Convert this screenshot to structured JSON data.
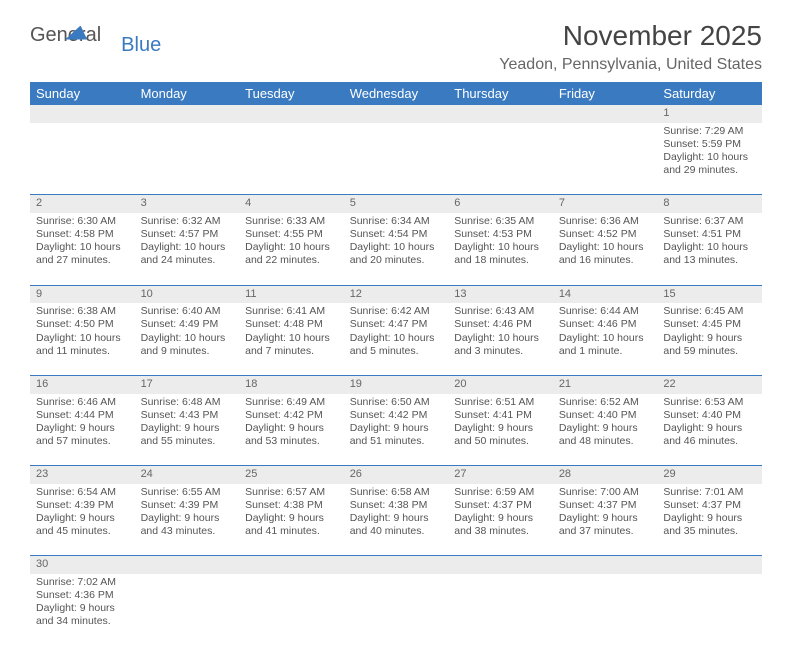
{
  "logo": {
    "part1": "General",
    "part2": "Blue"
  },
  "title": "November 2025",
  "location": "Yeadon, Pennsylvania, United States",
  "colors": {
    "header_bg": "#3a7ac0",
    "header_fg": "#ffffff",
    "daynum_bg": "#ececec",
    "text": "#555555",
    "rule": "#3a7ac0",
    "page_bg": "#ffffff"
  },
  "typography": {
    "title_fontsize": 28,
    "location_fontsize": 16,
    "header_fontsize": 13,
    "daynum_fontsize": 11,
    "body_fontsize": 10.5
  },
  "weekdays": [
    "Sunday",
    "Monday",
    "Tuesday",
    "Wednesday",
    "Thursday",
    "Friday",
    "Saturday"
  ],
  "weeks": [
    [
      null,
      null,
      null,
      null,
      null,
      null,
      {
        "n": "1",
        "sr": "Sunrise: 7:29 AM",
        "ss": "Sunset: 5:59 PM",
        "dl": "Daylight: 10 hours and 29 minutes."
      }
    ],
    [
      {
        "n": "2",
        "sr": "Sunrise: 6:30 AM",
        "ss": "Sunset: 4:58 PM",
        "dl": "Daylight: 10 hours and 27 minutes."
      },
      {
        "n": "3",
        "sr": "Sunrise: 6:32 AM",
        "ss": "Sunset: 4:57 PM",
        "dl": "Daylight: 10 hours and 24 minutes."
      },
      {
        "n": "4",
        "sr": "Sunrise: 6:33 AM",
        "ss": "Sunset: 4:55 PM",
        "dl": "Daylight: 10 hours and 22 minutes."
      },
      {
        "n": "5",
        "sr": "Sunrise: 6:34 AM",
        "ss": "Sunset: 4:54 PM",
        "dl": "Daylight: 10 hours and 20 minutes."
      },
      {
        "n": "6",
        "sr": "Sunrise: 6:35 AM",
        "ss": "Sunset: 4:53 PM",
        "dl": "Daylight: 10 hours and 18 minutes."
      },
      {
        "n": "7",
        "sr": "Sunrise: 6:36 AM",
        "ss": "Sunset: 4:52 PM",
        "dl": "Daylight: 10 hours and 16 minutes."
      },
      {
        "n": "8",
        "sr": "Sunrise: 6:37 AM",
        "ss": "Sunset: 4:51 PM",
        "dl": "Daylight: 10 hours and 13 minutes."
      }
    ],
    [
      {
        "n": "9",
        "sr": "Sunrise: 6:38 AM",
        "ss": "Sunset: 4:50 PM",
        "dl": "Daylight: 10 hours and 11 minutes."
      },
      {
        "n": "10",
        "sr": "Sunrise: 6:40 AM",
        "ss": "Sunset: 4:49 PM",
        "dl": "Daylight: 10 hours and 9 minutes."
      },
      {
        "n": "11",
        "sr": "Sunrise: 6:41 AM",
        "ss": "Sunset: 4:48 PM",
        "dl": "Daylight: 10 hours and 7 minutes."
      },
      {
        "n": "12",
        "sr": "Sunrise: 6:42 AM",
        "ss": "Sunset: 4:47 PM",
        "dl": "Daylight: 10 hours and 5 minutes."
      },
      {
        "n": "13",
        "sr": "Sunrise: 6:43 AM",
        "ss": "Sunset: 4:46 PM",
        "dl": "Daylight: 10 hours and 3 minutes."
      },
      {
        "n": "14",
        "sr": "Sunrise: 6:44 AM",
        "ss": "Sunset: 4:46 PM",
        "dl": "Daylight: 10 hours and 1 minute."
      },
      {
        "n": "15",
        "sr": "Sunrise: 6:45 AM",
        "ss": "Sunset: 4:45 PM",
        "dl": "Daylight: 9 hours and 59 minutes."
      }
    ],
    [
      {
        "n": "16",
        "sr": "Sunrise: 6:46 AM",
        "ss": "Sunset: 4:44 PM",
        "dl": "Daylight: 9 hours and 57 minutes."
      },
      {
        "n": "17",
        "sr": "Sunrise: 6:48 AM",
        "ss": "Sunset: 4:43 PM",
        "dl": "Daylight: 9 hours and 55 minutes."
      },
      {
        "n": "18",
        "sr": "Sunrise: 6:49 AM",
        "ss": "Sunset: 4:42 PM",
        "dl": "Daylight: 9 hours and 53 minutes."
      },
      {
        "n": "19",
        "sr": "Sunrise: 6:50 AM",
        "ss": "Sunset: 4:42 PM",
        "dl": "Daylight: 9 hours and 51 minutes."
      },
      {
        "n": "20",
        "sr": "Sunrise: 6:51 AM",
        "ss": "Sunset: 4:41 PM",
        "dl": "Daylight: 9 hours and 50 minutes."
      },
      {
        "n": "21",
        "sr": "Sunrise: 6:52 AM",
        "ss": "Sunset: 4:40 PM",
        "dl": "Daylight: 9 hours and 48 minutes."
      },
      {
        "n": "22",
        "sr": "Sunrise: 6:53 AM",
        "ss": "Sunset: 4:40 PM",
        "dl": "Daylight: 9 hours and 46 minutes."
      }
    ],
    [
      {
        "n": "23",
        "sr": "Sunrise: 6:54 AM",
        "ss": "Sunset: 4:39 PM",
        "dl": "Daylight: 9 hours and 45 minutes."
      },
      {
        "n": "24",
        "sr": "Sunrise: 6:55 AM",
        "ss": "Sunset: 4:39 PM",
        "dl": "Daylight: 9 hours and 43 minutes."
      },
      {
        "n": "25",
        "sr": "Sunrise: 6:57 AM",
        "ss": "Sunset: 4:38 PM",
        "dl": "Daylight: 9 hours and 41 minutes."
      },
      {
        "n": "26",
        "sr": "Sunrise: 6:58 AM",
        "ss": "Sunset: 4:38 PM",
        "dl": "Daylight: 9 hours and 40 minutes."
      },
      {
        "n": "27",
        "sr": "Sunrise: 6:59 AM",
        "ss": "Sunset: 4:37 PM",
        "dl": "Daylight: 9 hours and 38 minutes."
      },
      {
        "n": "28",
        "sr": "Sunrise: 7:00 AM",
        "ss": "Sunset: 4:37 PM",
        "dl": "Daylight: 9 hours and 37 minutes."
      },
      {
        "n": "29",
        "sr": "Sunrise: 7:01 AM",
        "ss": "Sunset: 4:37 PM",
        "dl": "Daylight: 9 hours and 35 minutes."
      }
    ],
    [
      {
        "n": "30",
        "sr": "Sunrise: 7:02 AM",
        "ss": "Sunset: 4:36 PM",
        "dl": "Daylight: 9 hours and 34 minutes."
      },
      null,
      null,
      null,
      null,
      null,
      null
    ]
  ]
}
